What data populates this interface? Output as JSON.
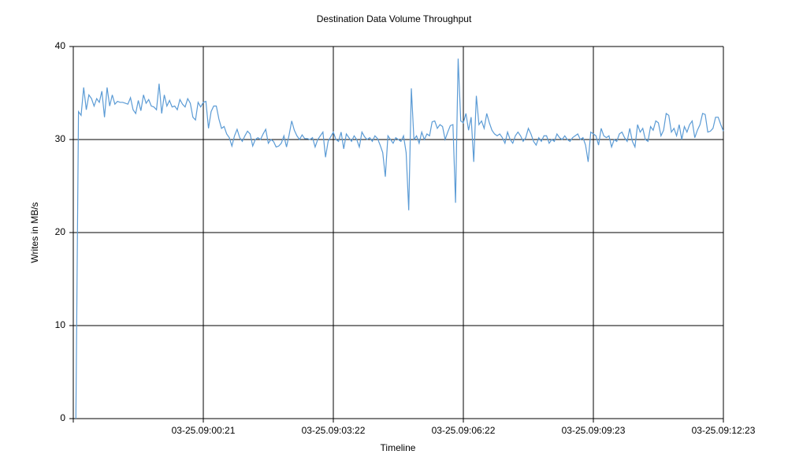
{
  "chart_data": {
    "type": "line",
    "title": "Destination Data Volume Throughput",
    "x_label": "Timeline",
    "y_label": "Writes in MB/s",
    "color": "#5b9bd5",
    "grid": true,
    "ylim": [
      0,
      40
    ],
    "yticks": [
      0,
      10,
      20,
      30,
      40
    ],
    "categories": [
      null,
      null,
      null,
      null,
      null,
      null,
      null,
      null,
      null,
      null,
      null,
      null,
      null,
      null,
      null,
      null,
      null,
      null,
      null,
      null,
      null,
      null,
      null,
      null,
      null,
      null,
      null,
      null,
      null,
      null,
      null,
      null,
      null,
      null,
      null,
      null,
      null,
      null,
      null,
      null,
      null,
      null,
      null,
      null,
      null,
      null,
      null,
      null,
      null,
      "03-25.09:00:21",
      null,
      null,
      null,
      null,
      null,
      null,
      null,
      null,
      null,
      null,
      null,
      null,
      null,
      null,
      null,
      null,
      null,
      null,
      null,
      null,
      null,
      null,
      null,
      null,
      null,
      null,
      null,
      null,
      null,
      null,
      null,
      null,
      null,
      null,
      null,
      null,
      null,
      null,
      null,
      null,
      null,
      null,
      null,
      null,
      null,
      null,
      null,
      null,
      null,
      "03-25.09:03:22",
      null,
      null,
      null,
      null,
      null,
      null,
      null,
      null,
      null,
      null,
      null,
      null,
      null,
      null,
      null,
      null,
      null,
      null,
      null,
      null,
      null,
      null,
      null,
      null,
      null,
      null,
      null,
      null,
      null,
      null,
      null,
      null,
      null,
      null,
      null,
      null,
      null,
      null,
      null,
      null,
      null,
      null,
      null,
      null,
      null,
      null,
      null,
      null,
      null,
      "03-25.09:06:22",
      null,
      null,
      null,
      null,
      null,
      null,
      null,
      null,
      null,
      null,
      null,
      null,
      null,
      null,
      null,
      null,
      null,
      null,
      null,
      null,
      null,
      null,
      null,
      null,
      null,
      null,
      null,
      null,
      null,
      null,
      null,
      null,
      null,
      null,
      null,
      null,
      null,
      null,
      null,
      null,
      null,
      null,
      null,
      null,
      null,
      null,
      null,
      null,
      null,
      "03-25.09:09:23",
      null,
      null,
      null,
      null,
      null,
      null,
      null,
      null,
      null,
      null,
      null,
      null,
      null,
      null,
      null,
      null,
      null,
      null,
      null,
      null,
      null,
      null,
      null,
      null,
      null,
      null,
      null,
      null,
      null,
      null,
      null,
      null,
      null,
      null,
      null,
      null,
      null,
      null,
      null,
      null,
      null,
      null,
      null,
      null,
      null,
      null,
      null,
      null,
      null,
      "03-25.09:12:23"
    ],
    "values": [
      0,
      33.0,
      32.6,
      35.6,
      33.2,
      34.8,
      34.4,
      33.6,
      34.4,
      34.0,
      35.2,
      32.4,
      35.6,
      33.6,
      34.8,
      33.8,
      34.1,
      34.0,
      34.0,
      33.9,
      33.8,
      34.5,
      33.2,
      32.8,
      34.2,
      33.1,
      34.8,
      33.9,
      34.3,
      33.6,
      33.5,
      33.2,
      36.0,
      32.8,
      34.8,
      33.6,
      34.2,
      33.5,
      33.6,
      33.2,
      34.3,
      33.8,
      33.5,
      34.4,
      33.9,
      32.4,
      32.1,
      34.0,
      33.5,
      34.0,
      34.1,
      31.2,
      33.0,
      33.6,
      33.6,
      32.2,
      31.2,
      31.4,
      30.6,
      30.2,
      29.3,
      30.4,
      31.1,
      30.2,
      29.8,
      30.4,
      30.9,
      30.6,
      29.3,
      30.0,
      30.2,
      30.0,
      30.6,
      31.1,
      29.6,
      30.0,
      29.8,
      29.2,
      29.3,
      29.6,
      30.4,
      29.2,
      30.5,
      32.0,
      31.0,
      30.4,
      30.0,
      30.5,
      30.1,
      30.1,
      30.0,
      30.2,
      29.2,
      30.0,
      30.4,
      30.8,
      28.1,
      29.8,
      30.3,
      30.8,
      30.0,
      29.8,
      30.8,
      29.0,
      30.6,
      30.2,
      29.8,
      30.4,
      30.0,
      29.2,
      30.8,
      30.3,
      30.0,
      30.2,
      29.8,
      30.4,
      30.1,
      29.4,
      28.6,
      26.0,
      30.4,
      30.0,
      29.6,
      30.2,
      30.0,
      29.8,
      30.4,
      28.6,
      22.4,
      35.5,
      30.0,
      30.4,
      29.6,
      30.8,
      30.0,
      30.6,
      30.4,
      31.9,
      32.0,
      31.2,
      31.6,
      31.4,
      30.0,
      30.8,
      31.5,
      31.6,
      23.2,
      38.7,
      32.0,
      31.8,
      32.8,
      31.0,
      32.4,
      27.6,
      34.7,
      31.6,
      32.0,
      31.2,
      32.8,
      31.8,
      31.0,
      30.6,
      30.4,
      30.6,
      30.2,
      29.6,
      30.8,
      30.0,
      29.6,
      30.4,
      30.8,
      30.4,
      29.8,
      30.2,
      31.2,
      30.6,
      29.8,
      29.4,
      30.2,
      29.8,
      30.4,
      30.4,
      29.6,
      30.0,
      29.8,
      30.6,
      30.2,
      30.0,
      30.4,
      30.0,
      29.8,
      30.2,
      30.4,
      30.6,
      30.0,
      30.2,
      29.4,
      27.6,
      30.8,
      30.6,
      30.4,
      29.4,
      31.2,
      30.4,
      30.2,
      30.4,
      29.2,
      30.0,
      29.8,
      30.6,
      30.8,
      30.2,
      29.8,
      31.2,
      29.8,
      29.2,
      31.6,
      30.8,
      31.2,
      30.0,
      29.8,
      31.4,
      31.0,
      32.0,
      31.8,
      30.4,
      31.0,
      32.8,
      32.6,
      30.8,
      31.2,
      30.4,
      31.6,
      30.0,
      31.4,
      30.8,
      31.6,
      32.0,
      30.2,
      31.0,
      31.6,
      32.8,
      32.7,
      30.8,
      30.9,
      31.2,
      32.4,
      32.4,
      31.6,
      30.9
    ]
  }
}
